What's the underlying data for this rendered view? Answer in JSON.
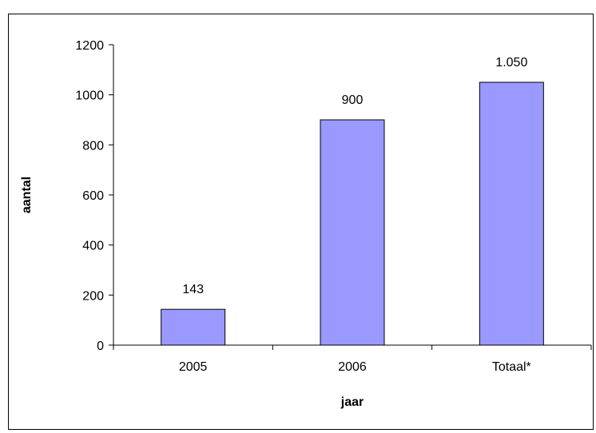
{
  "chart_data": {
    "type": "bar",
    "categories": [
      "2005",
      "2006",
      "Totaal*"
    ],
    "values": [
      143,
      900,
      1050
    ],
    "data_labels": [
      "143",
      "900",
      "1.050"
    ],
    "title": "",
    "xlabel": "jaar",
    "ylabel": "aantal",
    "ylim": [
      0,
      1200
    ],
    "yticks": [
      0,
      200,
      400,
      600,
      800,
      1000,
      1200
    ],
    "grid": false,
    "legend": "none",
    "bar_color": "#9999ff",
    "bar_edge_color": "#000000"
  }
}
